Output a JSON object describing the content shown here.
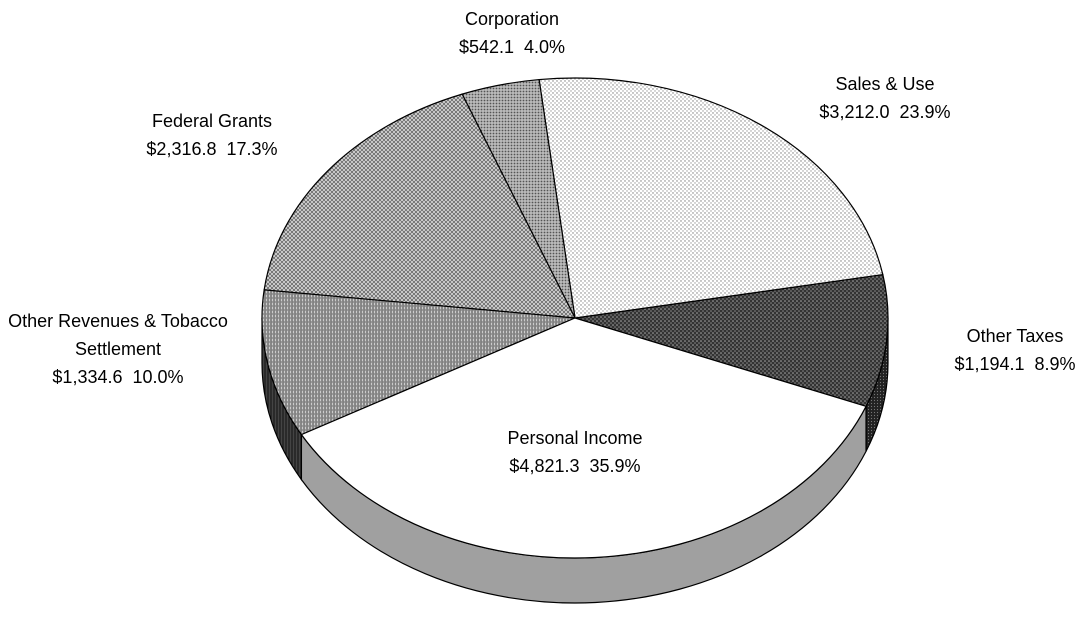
{
  "chart_data": {
    "type": "pie",
    "categories": [
      "Other Taxes",
      "Sales & Use",
      "Corporation",
      "Federal Grants",
      "Other Revenues & Tobacco Settlement",
      "Personal Income"
    ],
    "values": [
      1194.1,
      3212.0,
      542.1,
      2316.8,
      1334.6,
      4821.3
    ],
    "value_labels": [
      "$1,194.1",
      "$3,212.0",
      "$542.1",
      "$2,316.8",
      "$1,334.6",
      "$4,821.3"
    ],
    "percents": [
      8.9,
      23.9,
      4.0,
      17.3,
      10.0,
      35.9
    ],
    "percent_labels": [
      "8.9%",
      "23.9%",
      "4.0%",
      "17.3%",
      "10.0%",
      "35.9%"
    ]
  }
}
